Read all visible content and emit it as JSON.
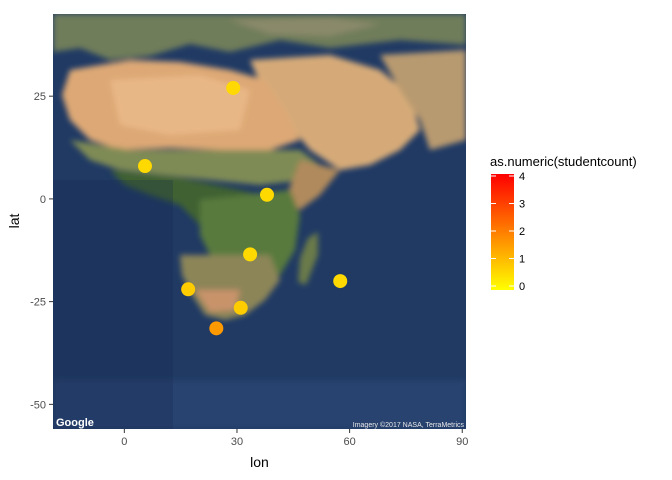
{
  "chart_data": {
    "type": "scatter",
    "basemap": "satellite",
    "xlabel": "lon",
    "ylabel": "lat",
    "xlim": [
      -19,
      91
    ],
    "ylim": [
      -56,
      45
    ],
    "x_ticks": [
      0,
      30,
      60,
      90
    ],
    "y_ticks": [
      25,
      0,
      -25,
      -50
    ],
    "grid": false,
    "legend": {
      "title": "as.numeric(studentcount)",
      "placement": "right",
      "type": "colorbar",
      "min": 0,
      "max": 4,
      "ticks": [
        4,
        3,
        2,
        1,
        0
      ],
      "low_color": "#ffff00",
      "high_color": "#ff0000"
    },
    "points": [
      {
        "lon": 29.0,
        "lat": 27.0,
        "value": 0.6
      },
      {
        "lon": 5.5,
        "lat": 8.0,
        "value": 0.6
      },
      {
        "lon": 38.0,
        "lat": 1.0,
        "value": 0.6
      },
      {
        "lon": 33.5,
        "lat": -13.5,
        "value": 0.6
      },
      {
        "lon": 57.5,
        "lat": -20.0,
        "value": 0.6
      },
      {
        "lon": 17.0,
        "lat": -22.0,
        "value": 0.8
      },
      {
        "lon": 31.0,
        "lat": -26.5,
        "value": 0.8
      },
      {
        "lon": 24.5,
        "lat": -31.5,
        "value": 1.6
      }
    ],
    "attribution_left": "Google",
    "attribution_right": "Imagery ©2017 NASA, TerraMetrics"
  }
}
